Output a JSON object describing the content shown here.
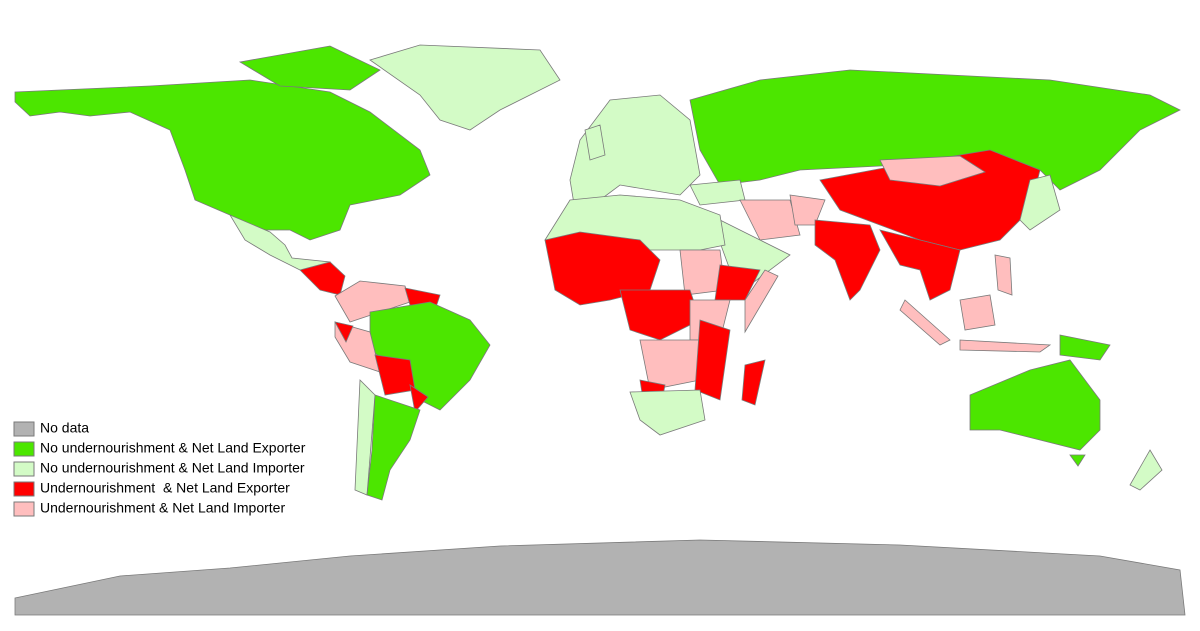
{
  "legend": {
    "items": [
      {
        "label": "No data",
        "color": "#b2b2b2"
      },
      {
        "label": "No undernourishment & Net Land Exporter",
        "color": "#4ce600"
      },
      {
        "label": "No undernourishment & Net Land Importer",
        "color": "#d3fbc6"
      },
      {
        "label": "Undernourishment  & Net Land Exporter",
        "color": "#ff0000"
      },
      {
        "label": "Undernourishment & Net Land Importer",
        "color": "#ffbebe"
      }
    ]
  }
}
